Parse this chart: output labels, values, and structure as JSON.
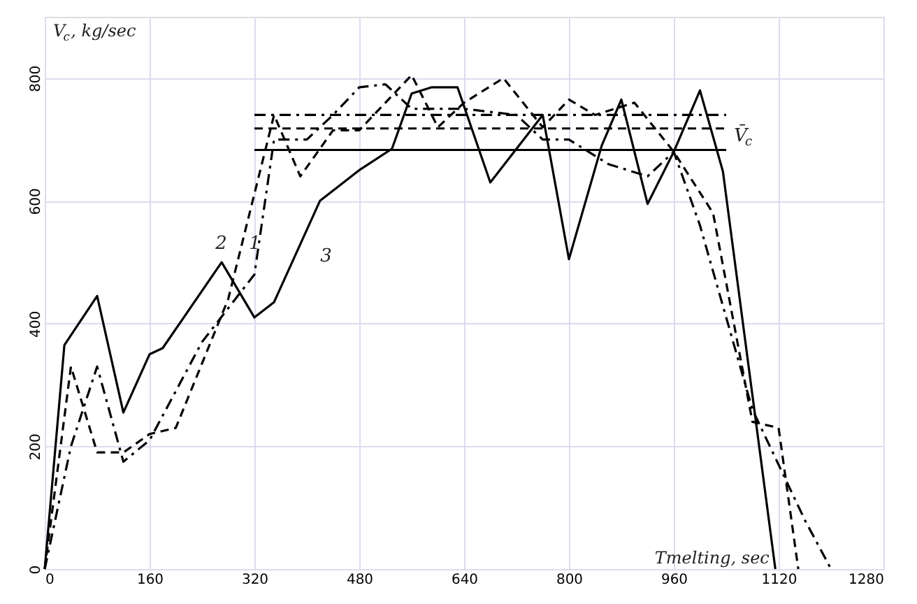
{
  "chart_data": {
    "type": "line",
    "xlabel": "Tmelting, sec",
    "ylabel": "V$_{c}$, kg/sec",
    "xlim": [
      0,
      1280
    ],
    "xticks": [
      0,
      160,
      320,
      480,
      640,
      800,
      960,
      1120,
      1280
    ],
    "ylim": [
      0,
      900
    ],
    "yticks": [
      0,
      200,
      400,
      600,
      800
    ],
    "grid": true,
    "marker": "none",
    "series": [
      {
        "color": "#000000",
        "line_style": "dashdot",
        "x": [
          0,
          40,
          80,
          120,
          160,
          240,
          320,
          350,
          400,
          440,
          480,
          520,
          560,
          640,
          680,
          720,
          760,
          800,
          860,
          920,
          960,
          1000,
          1080,
          1160,
          1200
        ],
        "values": [
          0,
          200,
          330,
          175,
          210,
          370,
          480,
          700,
          700,
          740,
          785,
          790,
          750,
          750,
          745,
          740,
          700,
          700,
          660,
          640,
          680,
          560,
          260,
          80,
          0
        ]
      },
      {
        "color": "#000000",
        "line_style": "dashed",
        "x": [
          0,
          40,
          80,
          120,
          160,
          200,
          280,
          350,
          390,
          440,
          480,
          560,
          600,
          640,
          700,
          760,
          800,
          840,
          900,
          960,
          1020,
          1080,
          1120,
          1150
        ],
        "values": [
          0,
          330,
          190,
          190,
          220,
          230,
          440,
          740,
          640,
          715,
          715,
          805,
          720,
          760,
          800,
          720,
          765,
          740,
          760,
          680,
          580,
          240,
          230,
          0
        ]
      },
      {
        "color": "#000000",
        "line_style": "solid",
        "x": [
          0,
          30,
          80,
          120,
          160,
          180,
          270,
          320,
          350,
          420,
          480,
          530,
          560,
          590,
          630,
          680,
          760,
          800,
          850,
          880,
          920,
          960,
          1000,
          1035,
          1115
        ],
        "values": [
          0,
          365,
          445,
          255,
          350,
          360,
          500,
          410,
          435,
          600,
          650,
          685,
          775,
          785,
          785,
          630,
          740,
          505,
          690,
          765,
          595,
          680,
          780,
          648,
          0
        ]
      },
      {
        "color": "#000000",
        "line_style": "dashdot",
        "x": [
          320,
          1040
        ],
        "values": [
          740,
          740
        ]
      },
      {
        "color": "#000000",
        "line_style": "dashed",
        "x": [
          320,
          1040
        ],
        "values": [
          718,
          718
        ]
      },
      {
        "color": "#000000",
        "line_style": "solid",
        "x": [
          320,
          1040
        ],
        "values": [
          683,
          683
        ]
      }
    ],
    "annotations": [
      "1",
      "2",
      "3",
      "V̄$_{c}$"
    ]
  }
}
